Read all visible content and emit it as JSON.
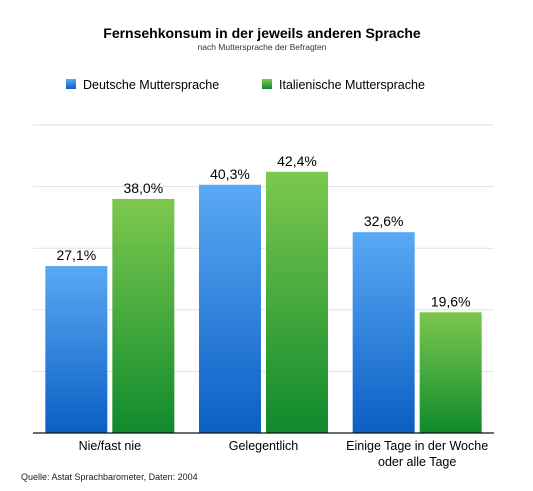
{
  "chart_data": {
    "type": "bar",
    "title": "Fernsehkonsum in der jeweils anderen Sprache",
    "subtitle": "nach Muttersprache der Befragten",
    "categories": [
      [
        "Nie/fast nie"
      ],
      [
        "Gelegentlich"
      ],
      [
        "Einige Tage in der Woche",
        "oder alle Tage"
      ]
    ],
    "series": [
      {
        "name": "Deutsche Muttersprache",
        "values": [
          27.1,
          40.3,
          32.6
        ],
        "labels": [
          "27,1%",
          "40,3%",
          "32,6%"
        ],
        "color_top": "#5aa9f5",
        "color_bottom": "#0b5fc4"
      },
      {
        "name": "Italienische Muttersprache",
        "values": [
          38.0,
          42.4,
          19.6
        ],
        "labels": [
          "38,0%",
          "42,4%",
          "19,6%"
        ],
        "color_top": "#7dc84e",
        "color_bottom": "#0f8a2c"
      }
    ],
    "ylim": [
      0,
      50
    ],
    "grid": true,
    "legend_position": "top-left",
    "source": "Quelle: Astat Sprachbarometer, Daten: 2004"
  }
}
